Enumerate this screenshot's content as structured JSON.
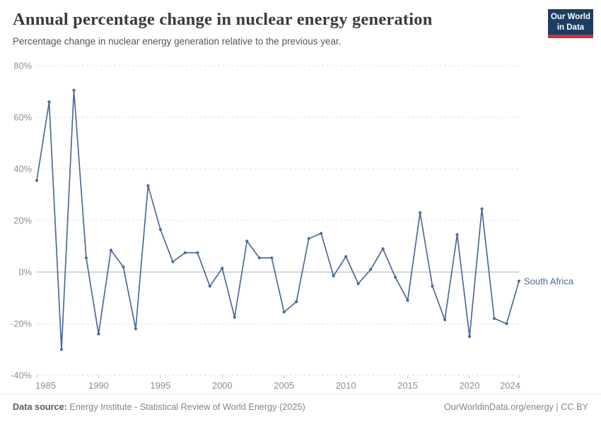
{
  "header": {
    "title": "Annual percentage change in nuclear energy generation",
    "subtitle": "Percentage change in nuclear energy generation relative to the previous year.",
    "logo": {
      "line1": "Our World",
      "line2": "in Data"
    }
  },
  "chart_data": {
    "type": "line",
    "title": "Annual percentage change in nuclear energy generation",
    "subtitle": "Percentage change in nuclear energy generation relative to the previous year.",
    "x": [
      1985,
      1986,
      1987,
      1988,
      1989,
      1990,
      1991,
      1992,
      1993,
      1994,
      1995,
      1996,
      1997,
      1998,
      1999,
      2000,
      2001,
      2002,
      2003,
      2004,
      2005,
      2006,
      2007,
      2008,
      2009,
      2010,
      2011,
      2012,
      2013,
      2014,
      2015,
      2016,
      2017,
      2018,
      2019,
      2020,
      2021,
      2022,
      2023,
      2024
    ],
    "series": [
      {
        "name": "South Africa",
        "color": "#4C6A9C",
        "values": [
          35.5,
          66,
          -30,
          70.5,
          5.5,
          -24,
          8.5,
          2,
          -22,
          33.5,
          16.5,
          4,
          7.5,
          7.5,
          -5.5,
          1.5,
          -17.5,
          12,
          5.5,
          5.5,
          -15.5,
          -11.5,
          13,
          15,
          -1.5,
          6,
          -4.5,
          1,
          9,
          -2,
          -11,
          23,
          -5.5,
          -18.5,
          14.5,
          -25,
          24.5,
          -18,
          -20,
          -3.5
        ]
      }
    ],
    "xlabel": "",
    "ylabel": "",
    "ylim": [
      -40,
      80
    ],
    "yticks": [
      80,
      60,
      40,
      20,
      0,
      -20,
      -40
    ],
    "ytick_labels": [
      "80%",
      "60%",
      "40%",
      "20%",
      "0%",
      "-20%",
      "-40%"
    ],
    "xticks": [
      1985,
      1990,
      1995,
      2000,
      2005,
      2010,
      2015,
      2020,
      2024
    ],
    "xtick_labels": [
      "1985",
      "1990",
      "1995",
      "2000",
      "2005",
      "2010",
      "2015",
      "2020",
      "2024"
    ],
    "grid": "horizontal dashed, solid line at 0",
    "legend": "entity name label at right end of line"
  },
  "footer": {
    "source_label": "Data source:",
    "source_text": " Energy Institute - Statistical Review of World Energy (2025)",
    "link_text": "OurWorldinData.org/energy | CC BY"
  },
  "colors": {
    "accent": "#4C6A9C",
    "grid": "#dedede",
    "zero_line": "#a8a8a8",
    "tick_text": "#8f8f8f",
    "axis_tick": "#bdbdbd",
    "logo_bg": "#1d3d63",
    "logo_red": "#cf3335"
  }
}
